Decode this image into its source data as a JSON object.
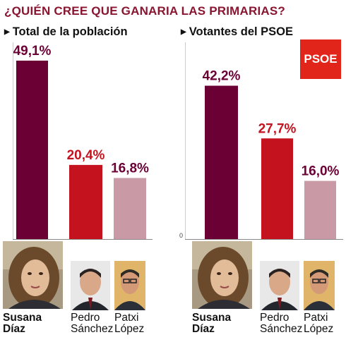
{
  "title": "¿QUIÉN CREE QUE GANARIA LAS PRIMARIAS?",
  "logo": {
    "text": "PSOE",
    "color": "#e1251b"
  },
  "colors": {
    "susana": "#6b0035",
    "pedro": "#c4121e",
    "patxi": "#c99aa5",
    "axis": "#888888"
  },
  "candidates": [
    {
      "first": "Susana",
      "last": "Díaz"
    },
    {
      "first": "Pedro",
      "last": "Sánchez"
    },
    {
      "first": "Patxi",
      "last": "López"
    }
  ],
  "chart_data": [
    {
      "type": "bar",
      "title": "Total de la población",
      "categories": [
        "Susana Díaz",
        "Pedro Sánchez",
        "Patxi López"
      ],
      "values": [
        49.1,
        20.4,
        16.8
      ],
      "labels": [
        "49,1%",
        "20,4%",
        "16,8%"
      ],
      "ylim": [
        0,
        49.1
      ]
    },
    {
      "type": "bar",
      "title": "Votantes del PSOE",
      "categories": [
        "Susana Díaz",
        "Pedro Sánchez",
        "Patxi López"
      ],
      "values": [
        42.2,
        27.7,
        16.0
      ],
      "labels": [
        "42,2%",
        "27,7%",
        "16,0%"
      ],
      "axis_zero_label": "0",
      "ylim": [
        0,
        49.1
      ]
    }
  ]
}
